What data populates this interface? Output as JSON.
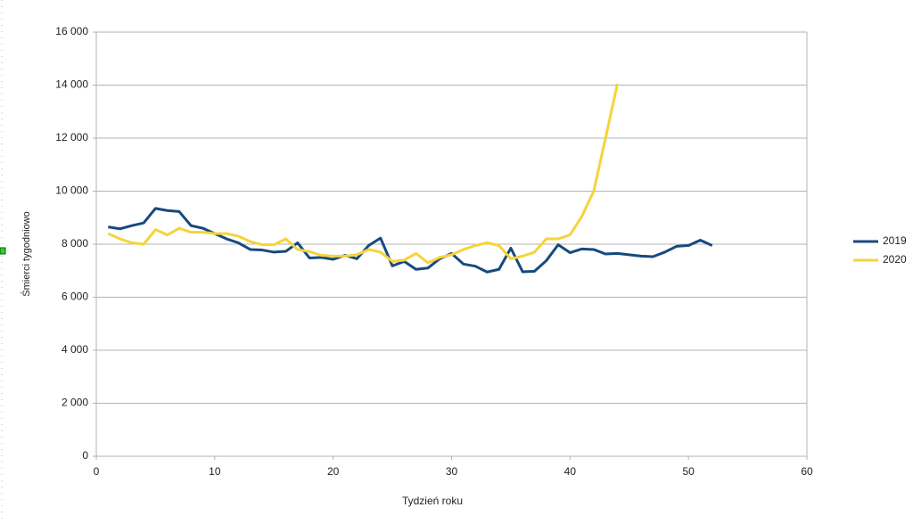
{
  "chart_data": {
    "type": "line",
    "x_label": "Tydzień roku",
    "y_label": "Śmierci tygodniowo",
    "x": [
      1,
      2,
      3,
      4,
      5,
      6,
      7,
      8,
      9,
      10,
      11,
      12,
      13,
      14,
      15,
      16,
      17,
      18,
      19,
      20,
      21,
      22,
      23,
      24,
      25,
      26,
      27,
      28,
      29,
      30,
      31,
      32,
      33,
      34,
      35,
      36,
      37,
      38,
      39,
      40,
      41,
      42,
      43,
      44,
      45,
      46,
      47,
      48,
      49,
      50,
      51,
      52
    ],
    "series": [
      {
        "name": "2019",
        "color": "#17497f",
        "values": [
          8650,
          8580,
          8700,
          8800,
          9350,
          9270,
          9230,
          8700,
          8600,
          8400,
          8200,
          8050,
          7800,
          7780,
          7700,
          7730,
          8050,
          7480,
          7500,
          7430,
          7580,
          7450,
          7950,
          8230,
          7180,
          7350,
          7050,
          7100,
          7450,
          7650,
          7250,
          7170,
          6950,
          7050,
          7850,
          6960,
          6980,
          7380,
          7980,
          7680,
          7820,
          7800,
          7630,
          7650,
          7600,
          7550,
          7530,
          7700,
          7920,
          7950,
          8150,
          7950
        ]
      },
      {
        "name": "2020",
        "color": "#f5d33b",
        "values": [
          8400,
          8200,
          8050,
          8000,
          8550,
          8350,
          8600,
          8450,
          8450,
          8400,
          8400,
          8300,
          8100,
          7980,
          7980,
          8200,
          7800,
          7720,
          7580,
          7550,
          7550,
          7600,
          7800,
          7700,
          7350,
          7400,
          7650,
          7300,
          7500,
          7600,
          7800,
          7950,
          8050,
          7950,
          7450,
          7550,
          7700,
          8200,
          8200,
          8350,
          9050,
          10000,
          12000,
          14050,
          null,
          null,
          null,
          null,
          null,
          null,
          null,
          null
        ]
      }
    ],
    "xlim": [
      0,
      60
    ],
    "xticks": [
      0,
      10,
      20,
      30,
      40,
      50,
      60
    ],
    "ylim": [
      0,
      16000
    ],
    "yticks": [
      0,
      {
        "value": 2000,
        "label": "2 000"
      },
      {
        "value": 4000,
        "label": "4 000"
      },
      {
        "value": 6000,
        "label": "6 000"
      },
      {
        "value": 8000,
        "label": "8 000"
      },
      {
        "value": 10000,
        "label": "10 000"
      },
      {
        "value": 12000,
        "label": "12 000"
      },
      {
        "value": 14000,
        "label": "14 000"
      },
      {
        "value": 16000,
        "label": "16 000"
      }
    ],
    "grid": true,
    "legend": "right"
  }
}
